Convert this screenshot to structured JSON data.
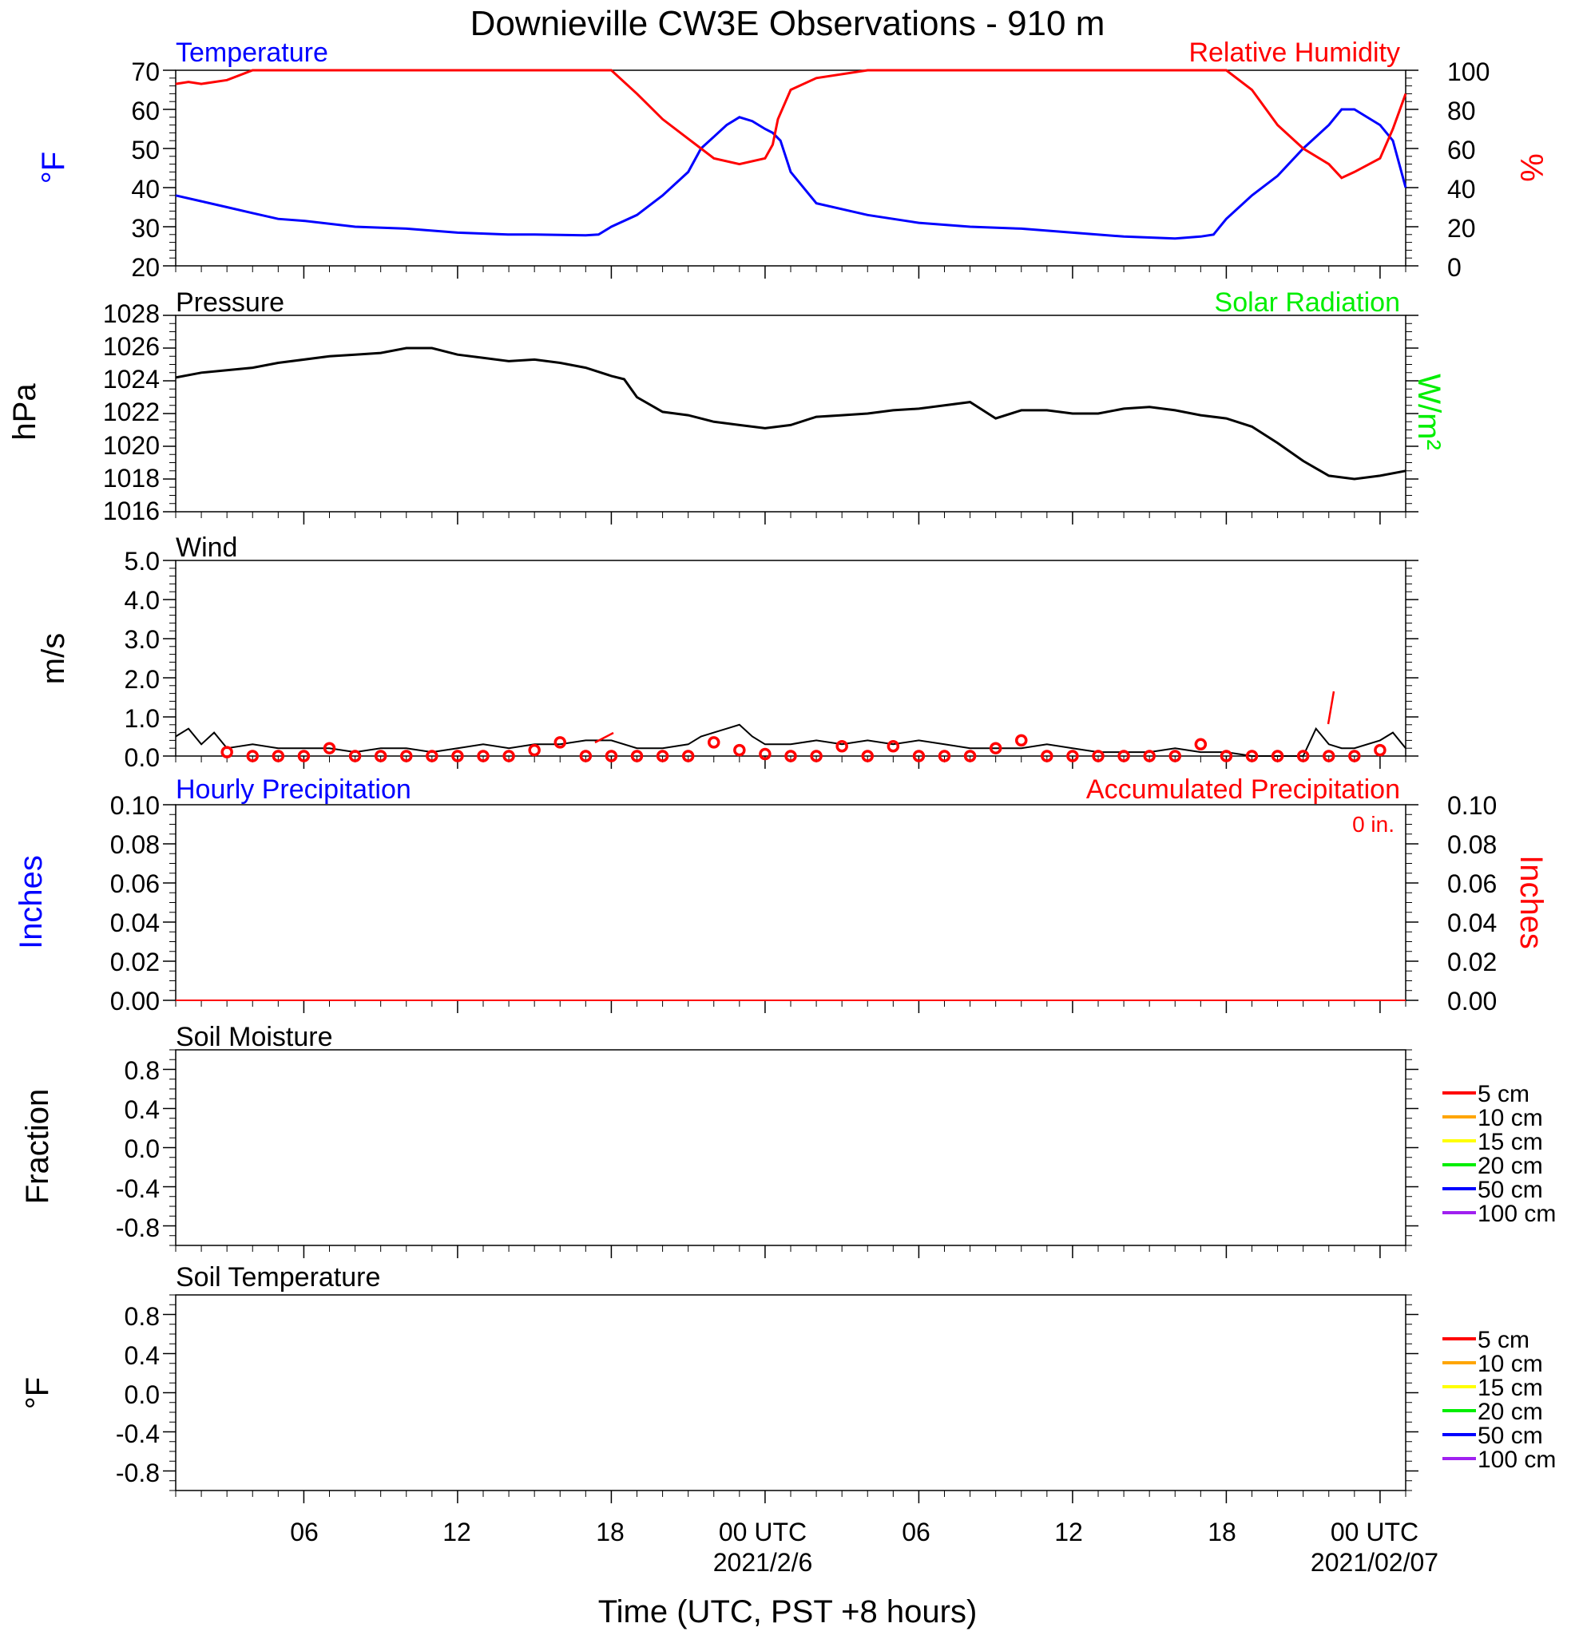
{
  "title": "Downieville CW3E Observations - 910 m",
  "x_axis": {
    "label": "Time (UTC, PST +8 hours)",
    "ticks": [
      "06",
      "12",
      "18",
      "00 UTC",
      "06",
      "12",
      "18",
      "00 UTC"
    ],
    "tick_hours": [
      6,
      12,
      18,
      24,
      30,
      36,
      42,
      48
    ],
    "date_labels": [
      {
        "text": "2021/2/6",
        "hour": 24
      },
      {
        "text": "2021/02/07",
        "hour": 48
      }
    ],
    "range_hours": [
      1,
      49
    ]
  },
  "colors": {
    "temperature": "#0000ff",
    "humidity": "#ff0000",
    "pressure": "#000000",
    "solar": "#00ee00",
    "wind": "#000000",
    "gust": "#ff0000",
    "hourly_precip": "#0000ff",
    "accum_precip": "#ff0000"
  },
  "panels": {
    "temp_rh": {
      "left_title": "Temperature",
      "right_title": "Relative Humidity",
      "left_unit": "°F",
      "right_unit": "%",
      "left_ticks": [
        "70",
        "60",
        "50",
        "40",
        "30",
        "20"
      ],
      "right_ticks": [
        "100",
        "80",
        "60",
        "40",
        "20",
        "0"
      ]
    },
    "pressure": {
      "left_title": "Pressure",
      "right_title": "Solar Radiation",
      "left_unit": "hPa",
      "right_unit": "W/m²",
      "left_ticks": [
        "1028",
        "1026",
        "1024",
        "1022",
        "1020",
        "1018",
        "1016"
      ]
    },
    "wind": {
      "left_title": "Wind",
      "left_unit": "m/s",
      "left_ticks": [
        "5.0",
        "4.0",
        "3.0",
        "2.0",
        "1.0",
        "0.0"
      ]
    },
    "precip": {
      "left_title": "Hourly Precipitation",
      "right_title": "Accumulated Precipitation",
      "total_label": "0 in.",
      "left_unit": "Inches",
      "right_unit": "Inches",
      "left_ticks": [
        "0.10",
        "0.08",
        "0.06",
        "0.04",
        "0.02",
        "0.00"
      ],
      "right_ticks": [
        "0.10",
        "0.08",
        "0.06",
        "0.04",
        "0.02",
        "0.00"
      ]
    },
    "soil_moisture": {
      "left_title": "Soil Moisture",
      "left_unit": "Fraction",
      "left_ticks": [
        "0.8",
        "0.4",
        "0.0",
        "-0.4",
        "-0.8"
      ]
    },
    "soil_temp": {
      "left_title": "Soil Temperature",
      "left_unit": "°F",
      "left_ticks": [
        "0.8",
        "0.4",
        "0.0",
        "-0.4",
        "-0.8"
      ]
    }
  },
  "soil_legend": [
    {
      "label": "5 cm",
      "color": "#ff0000"
    },
    {
      "label": "10 cm",
      "color": "#ffa500"
    },
    {
      "label": "15 cm",
      "color": "#ffff00"
    },
    {
      "label": "20 cm",
      "color": "#00ee00"
    },
    {
      "label": "50 cm",
      "color": "#0000ff"
    },
    {
      "label": "100 cm",
      "color": "#a020f0"
    }
  ],
  "chart_data": [
    {
      "type": "line",
      "title": "Temperature / Relative Humidity",
      "x_unit": "hours since 2021-02-05 00 UTC",
      "ylim_left": [
        20,
        70
      ],
      "ylim_right": [
        0,
        100
      ],
      "series": [
        {
          "name": "Temperature",
          "axis": "left",
          "color": "#0000ff",
          "x": [
            1,
            2,
            3,
            4,
            5,
            6,
            8,
            10,
            12,
            14,
            15,
            17,
            17.5,
            18,
            19,
            20,
            21,
            21.5,
            22,
            22.5,
            23,
            23.5,
            24,
            24.3,
            24.6,
            25,
            26,
            28,
            30,
            32,
            34,
            36,
            38,
            40,
            41,
            41.5,
            42,
            43,
            44,
            45,
            46,
            46.5,
            47,
            48,
            48.5,
            49
          ],
          "y": [
            38,
            36.5,
            35,
            33.5,
            32,
            31.5,
            30,
            29.5,
            28.5,
            28,
            28,
            27.8,
            28,
            30,
            33,
            38,
            44,
            50,
            53,
            56,
            58,
            57,
            55,
            54,
            52,
            44,
            36,
            33,
            31,
            30,
            29.5,
            28.5,
            27.5,
            27,
            27.5,
            28,
            32,
            38,
            43,
            50,
            56,
            60,
            60,
            56,
            52,
            40
          ]
        },
        {
          "name": "Relative Humidity",
          "axis": "right",
          "color": "#ff0000",
          "x": [
            1,
            1.5,
            2,
            3,
            4,
            5,
            6,
            10,
            18,
            19,
            20,
            21,
            21.5,
            22,
            23,
            24,
            24.3,
            24.5,
            25,
            26,
            28,
            30,
            36,
            42,
            43,
            44,
            45,
            46,
            46.5,
            47,
            48,
            48.5,
            49
          ],
          "y": [
            93,
            94,
            93,
            95,
            100,
            100,
            100,
            100,
            100,
            88,
            75,
            65,
            60,
            55,
            52,
            55,
            62,
            75,
            90,
            96,
            100,
            100,
            100,
            100,
            90,
            72,
            60,
            52,
            45,
            48,
            55,
            70,
            88
          ]
        }
      ]
    },
    {
      "type": "line",
      "title": "Pressure",
      "x_unit": "hours since 2021-02-05 00 UTC",
      "ylim": [
        1016,
        1028
      ],
      "series": [
        {
          "name": "Pressure",
          "color": "#000000",
          "x": [
            1,
            2,
            4,
            5,
            7,
            8,
            9,
            10,
            11,
            12,
            13,
            14,
            15,
            16,
            17,
            18,
            18.5,
            19,
            20,
            21,
            22,
            23,
            24,
            25,
            26,
            27,
            28,
            29,
            30,
            31,
            32,
            33,
            34,
            35,
            36,
            37,
            38,
            39,
            40,
            41,
            42,
            43,
            44,
            45,
            46,
            47,
            48,
            49
          ],
          "y": [
            1024.2,
            1024.5,
            1024.8,
            1025.1,
            1025.5,
            1025.6,
            1025.7,
            1026.0,
            1026.0,
            1025.6,
            1025.4,
            1025.2,
            1025.3,
            1025.1,
            1024.8,
            1024.3,
            1024.1,
            1023.0,
            1022.1,
            1021.9,
            1021.5,
            1021.3,
            1021.1,
            1021.3,
            1021.8,
            1021.9,
            1022.0,
            1022.2,
            1022.3,
            1022.5,
            1022.7,
            1021.7,
            1022.2,
            1022.2,
            1022.0,
            1022.0,
            1022.3,
            1022.4,
            1022.2,
            1021.9,
            1021.7,
            1021.2,
            1020.2,
            1019.1,
            1018.2,
            1018.0,
            1018.2,
            1018.5
          ]
        }
      ]
    },
    {
      "type": "line",
      "title": "Wind",
      "x_unit": "hours since 2021-02-05 00 UTC",
      "ylim": [
        0,
        5
      ],
      "series": [
        {
          "name": "Wind",
          "color": "#000000",
          "x": [
            1,
            1.5,
            2,
            2.5,
            3,
            4,
            5,
            6,
            7,
            8,
            9,
            10,
            11,
            12,
            13,
            14,
            15,
            16,
            17,
            18,
            19,
            20,
            21,
            21.5,
            22,
            22.5,
            23,
            23.5,
            24,
            25,
            26,
            27,
            28,
            29,
            30,
            31,
            32,
            33,
            34,
            35,
            36,
            37,
            38,
            39,
            40,
            41,
            42,
            43,
            44,
            45,
            45.5,
            46,
            46.5,
            47,
            48,
            48.5,
            49
          ],
          "y": [
            0.5,
            0.7,
            0.3,
            0.6,
            0.2,
            0.3,
            0.2,
            0.2,
            0.2,
            0.1,
            0.2,
            0.2,
            0.1,
            0.2,
            0.3,
            0.2,
            0.3,
            0.3,
            0.4,
            0.4,
            0.2,
            0.2,
            0.3,
            0.5,
            0.6,
            0.7,
            0.8,
            0.5,
            0.3,
            0.3,
            0.4,
            0.3,
            0.4,
            0.3,
            0.4,
            0.3,
            0.2,
            0.2,
            0.2,
            0.3,
            0.2,
            0.1,
            0.1,
            0.1,
            0.2,
            0.1,
            0.1,
            0.0,
            0.0,
            0.0,
            0.7,
            0.3,
            0.2,
            0.2,
            0.4,
            0.6,
            0.2
          ]
        }
      ],
      "gusts": {
        "x": [
          3,
          4,
          5,
          6,
          7,
          8,
          9,
          10,
          11,
          12,
          13,
          14,
          15,
          16,
          17,
          18,
          19,
          20,
          21,
          22,
          23,
          24,
          25,
          26,
          27,
          28,
          29,
          30,
          31,
          32,
          33,
          34,
          35,
          36,
          37,
          38,
          39,
          40,
          41,
          42,
          43,
          44,
          45,
          46,
          47,
          48
        ],
        "y": [
          0.1,
          0.0,
          0.0,
          0.0,
          0.2,
          0.0,
          0.0,
          0.0,
          0.0,
          0.0,
          0.0,
          0.0,
          0.15,
          0.35,
          0.0,
          0.0,
          0.0,
          0.0,
          0.0,
          0.35,
          0.15,
          0.05,
          0.0,
          0.0,
          0.25,
          0.0,
          0.25,
          0.0,
          0.0,
          0.0,
          0.2,
          0.4,
          0.0,
          0.0,
          0.0,
          0.0,
          0.0,
          0.0,
          0.3,
          0.0,
          0.0,
          0.0,
          0.0,
          0.0,
          0.0,
          0.15
        ]
      }
    },
    {
      "type": "line",
      "title": "Hourly / Accumulated Precipitation",
      "x_unit": "hours since 2021-02-05 00 UTC",
      "ylim": [
        0,
        0.1
      ],
      "series": [
        {
          "name": "Hourly Precipitation",
          "color": "#0000ff",
          "x": [
            1,
            49
          ],
          "y": [
            0,
            0
          ]
        },
        {
          "name": "Accumulated Precipitation",
          "color": "#ff0000",
          "x": [
            1,
            49
          ],
          "y": [
            0,
            0
          ]
        }
      ]
    },
    {
      "type": "line",
      "title": "Soil Moisture",
      "ylim": [
        -1,
        1
      ],
      "series": []
    },
    {
      "type": "line",
      "title": "Soil Temperature",
      "ylim": [
        -1,
        1
      ],
      "series": []
    }
  ]
}
